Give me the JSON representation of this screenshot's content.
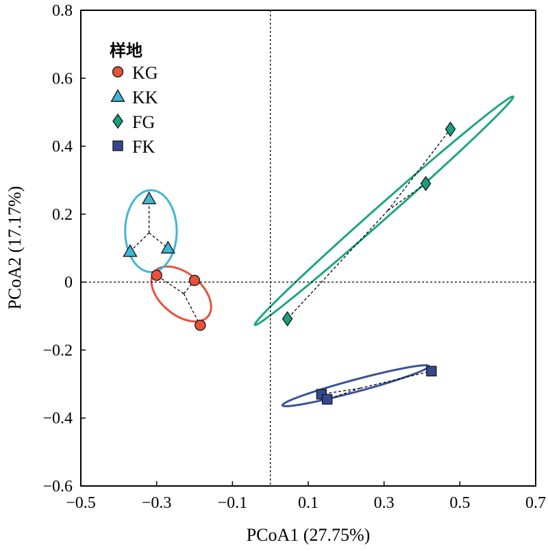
{
  "chart_data": {
    "type": "scatter",
    "title": "",
    "xlabel": "PCoA1 (27.75%)",
    "ylabel": "PCoA2 (17.17%)",
    "xlim": [
      -0.5,
      0.7
    ],
    "ylim": [
      -0.6,
      0.8
    ],
    "xticks": [
      -0.5,
      -0.3,
      -0.1,
      0.1,
      0.3,
      0.5,
      0.7
    ],
    "xtick_labels": [
      "−0.5",
      "−0.3",
      "−0.1",
      "0.1",
      "0.3",
      "0.5",
      "0.7"
    ],
    "yticks": [
      -0.6,
      -0.4,
      -0.2,
      0,
      0.2,
      0.4,
      0.6,
      0.8
    ],
    "ytick_labels": [
      "−0.6",
      "−0.4",
      "−0.2",
      "0",
      "0.2",
      "0.4",
      "0.6",
      "0.8"
    ],
    "grid": false,
    "reference_lines": {
      "x": 0,
      "y": 0
    },
    "legend": {
      "title": "样地",
      "position": "top-left"
    },
    "series": [
      {
        "name": "KG",
        "marker": "circle",
        "color": "#e8513a",
        "ellipse_color": "#e8513a",
        "points": [
          [
            -0.3,
            0.02
          ],
          [
            -0.2,
            0.005
          ],
          [
            -0.185,
            -0.127
          ]
        ],
        "ellipse": {
          "cx": -0.235,
          "cy": -0.035,
          "rx": 0.092,
          "ry": 0.055,
          "angle_deg": -40
        }
      },
      {
        "name": "KK",
        "marker": "triangle",
        "color": "#3fb6d3",
        "ellipse_color": "#3fb6d3",
        "points": [
          [
            -0.32,
            0.245
          ],
          [
            -0.37,
            0.09
          ],
          [
            -0.27,
            0.1
          ]
        ],
        "ellipse": {
          "cx": -0.315,
          "cy": 0.15,
          "rx": 0.068,
          "ry": 0.108,
          "angle_deg": 0
        }
      },
      {
        "name": "FG",
        "marker": "diamond",
        "color": "#1a9f80",
        "ellipse_color": "#1aa582",
        "points": [
          [
            0.475,
            0.45
          ],
          [
            0.41,
            0.29
          ],
          [
            0.045,
            -0.108
          ]
        ],
        "ellipse": {
          "cx": 0.3,
          "cy": 0.21,
          "rx": 0.455,
          "ry": 0.018,
          "angle_deg": 41.5
        }
      },
      {
        "name": "FK",
        "marker": "square",
        "color": "#34488f",
        "ellipse_color": "#3a5296",
        "points": [
          [
            0.135,
            -0.33
          ],
          [
            0.15,
            -0.345
          ],
          [
            0.425,
            -0.262
          ]
        ],
        "ellipse": {
          "cx": 0.225,
          "cy": -0.305,
          "rx": 0.2,
          "ry": 0.016,
          "angle_deg": 15
        }
      }
    ]
  }
}
